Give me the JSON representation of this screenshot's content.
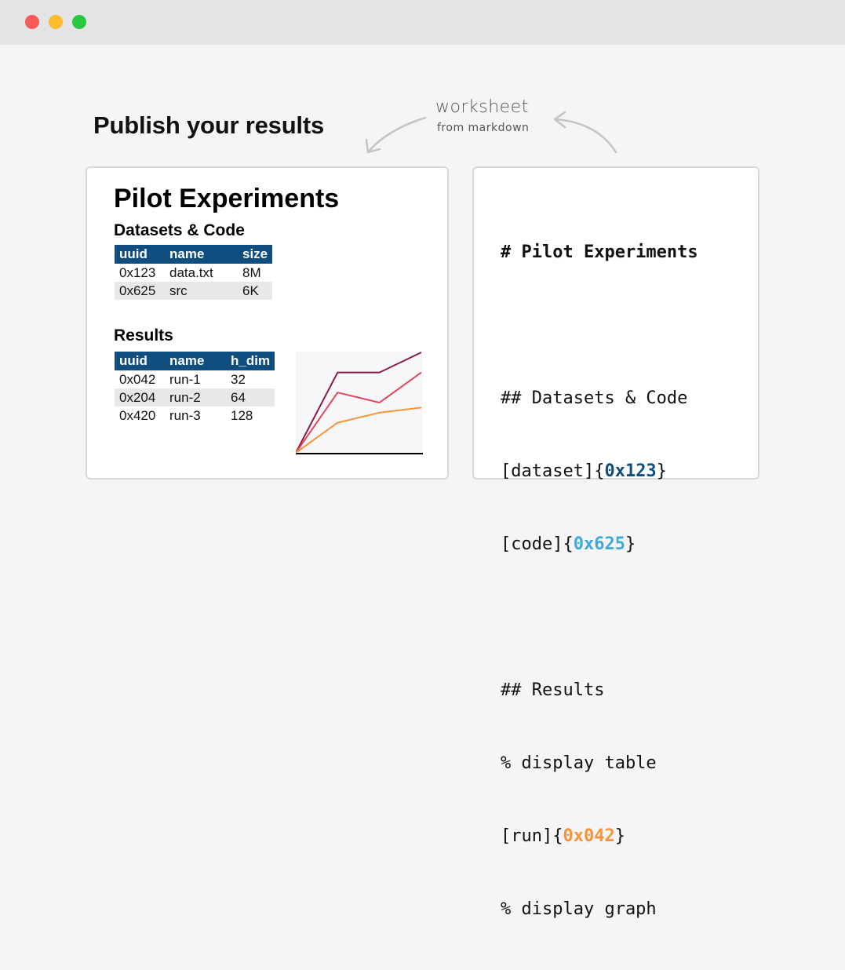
{
  "window": {
    "controls": [
      "close",
      "minimize",
      "maximize"
    ]
  },
  "headline": "Publish your results",
  "annotation": {
    "title": "worksheet",
    "subtitle": "from markdown"
  },
  "worksheet": {
    "title": "Pilot Experiments",
    "datasets_heading": "Datasets & Code",
    "datasets_table": {
      "columns": [
        "uuid",
        "name",
        "size"
      ],
      "rows": [
        [
          "0x123",
          "data.txt",
          "8M"
        ],
        [
          "0x625",
          "src",
          "6K"
        ]
      ]
    },
    "results_heading": "Results",
    "results_table": {
      "columns": [
        "uuid",
        "name",
        "h_dim"
      ],
      "rows": [
        [
          "0x042",
          "run-1",
          "32"
        ],
        [
          "0x204",
          "run-2",
          "64"
        ],
        [
          "0x420",
          "run-3",
          "128"
        ]
      ]
    }
  },
  "chart_data": {
    "type": "line",
    "x": [
      0,
      1,
      2,
      3
    ],
    "series": [
      {
        "values": [
          0,
          0.8,
          0.8,
          1.0
        ],
        "color": "#8b1a4a"
      },
      {
        "values": [
          0,
          0.6,
          0.5,
          0.8
        ],
        "color": "#e0485a"
      },
      {
        "values": [
          0,
          0.3,
          0.4,
          0.45
        ],
        "color": "#f7943a"
      }
    ],
    "ylim": [
      0,
      1
    ],
    "title": "",
    "xlabel": "",
    "ylabel": "",
    "grid": false
  },
  "markdown": {
    "line1": "# Pilot Experiments",
    "line3": "## Datasets & Code",
    "line4_prefix": "[dataset]{",
    "line4_id": "0x123",
    "line4_suffix": "}",
    "line5_prefix": "[code]{",
    "line5_id": "0x625",
    "line5_suffix": "}",
    "line7": "## Results",
    "line8": "% display table",
    "line9_prefix": "[run]{",
    "line9_id": "0x042",
    "line9_suffix": "}",
    "line10": "% display graph"
  },
  "colors": {
    "id_dataset": "#0f4e7f",
    "id_code": "#3fa9db",
    "id_run": "#f7943a",
    "table_header": "#0f4e7f"
  }
}
